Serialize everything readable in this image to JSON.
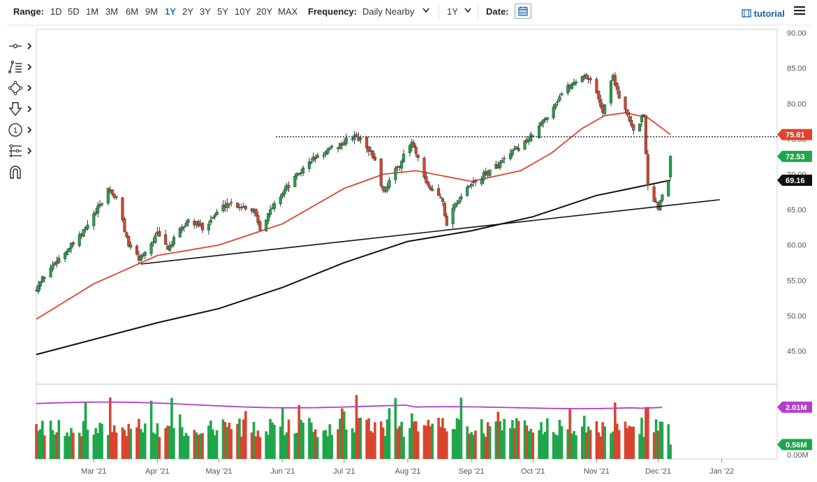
{
  "toolbar": {
    "range_label": "Range:",
    "ranges": [
      "1D",
      "5D",
      "1M",
      "3M",
      "6M",
      "9M",
      "1Y",
      "2Y",
      "3Y",
      "5Y",
      "10Y",
      "20Y",
      "MAX"
    ],
    "active_range": "1Y",
    "frequency_label": "Frequency:",
    "frequency_value": "Daily Nearby",
    "period_value": "1Y",
    "date_label": "Date:",
    "tutorial_label": "tutorial"
  },
  "tools": [
    "crosshair-icon",
    "trendline-icon",
    "shape-icon",
    "arrow-down-icon",
    "annotation-number-icon",
    "fibonacci-icon",
    "magnet-icon"
  ],
  "colors": {
    "up": "#1fa64a",
    "down": "#d9442e",
    "ma50": "#e0442a",
    "ma200": "#111111",
    "volume_avg": "#b23fcc",
    "accent": "#1a73c8"
  },
  "chart_data": {
    "type": "candlestick",
    "y_ticks": [
      "90.00",
      "85.00",
      "80.00",
      "75.00",
      "70.00",
      "65.00",
      "60.00",
      "55.00",
      "50.00",
      "45.00"
    ],
    "ylim": [
      40.5,
      90.5
    ],
    "x_ticks": [
      {
        "label": "Mar '21",
        "date": "2021-03-01"
      },
      {
        "label": "Apr '21",
        "date": "2021-04-01"
      },
      {
        "label": "May '21",
        "date": "2021-05-01"
      },
      {
        "label": "Jun '21",
        "date": "2021-06-01"
      },
      {
        "label": "Jul '21",
        "date": "2021-07-01"
      },
      {
        "label": "Aug '21",
        "date": "2021-08-01"
      },
      {
        "label": "Sep '21",
        "date": "2021-09-01"
      },
      {
        "label": "Oct '21",
        "date": "2021-10-01"
      },
      {
        "label": "Nov '21",
        "date": "2021-11-01"
      },
      {
        "label": "Dec '21",
        "date": "2021-12-01"
      },
      {
        "label": "Jan '22",
        "date": "2022-01-01"
      }
    ],
    "x_range": [
      "2021-02-01",
      "2022-01-28"
    ],
    "price_anchors": [
      {
        "date": "2021-02-01",
        "close": 54.0
      },
      {
        "date": "2021-02-10",
        "close": 57.5
      },
      {
        "date": "2021-02-22",
        "close": 61.0
      },
      {
        "date": "2021-03-05",
        "close": 66.0
      },
      {
        "date": "2021-03-08",
        "close": 68.0
      },
      {
        "date": "2021-03-12",
        "close": 66.5
      },
      {
        "date": "2021-03-18",
        "close": 60.0
      },
      {
        "date": "2021-03-23",
        "close": 58.0
      },
      {
        "date": "2021-04-01",
        "close": 61.5
      },
      {
        "date": "2021-04-06",
        "close": 59.5
      },
      {
        "date": "2021-04-16",
        "close": 63.5
      },
      {
        "date": "2021-04-23",
        "close": 62.5
      },
      {
        "date": "2021-05-05",
        "close": 66.0
      },
      {
        "date": "2021-05-12",
        "close": 65.5
      },
      {
        "date": "2021-05-18",
        "close": 65.0
      },
      {
        "date": "2021-05-21",
        "close": 62.5
      },
      {
        "date": "2021-06-01",
        "close": 67.5
      },
      {
        "date": "2021-06-15",
        "close": 72.0
      },
      {
        "date": "2021-06-28",
        "close": 74.0
      },
      {
        "date": "2021-07-06",
        "close": 75.5
      },
      {
        "date": "2021-07-12",
        "close": 74.0
      },
      {
        "date": "2021-07-16",
        "close": 72.0
      },
      {
        "date": "2021-07-20",
        "close": 67.5
      },
      {
        "date": "2021-07-28",
        "close": 71.5
      },
      {
        "date": "2021-08-03",
        "close": 74.5
      },
      {
        "date": "2021-08-10",
        "close": 68.5
      },
      {
        "date": "2021-08-18",
        "close": 66.5
      },
      {
        "date": "2021-08-20",
        "close": 62.5
      },
      {
        "date": "2021-08-23",
        "close": 65.5
      },
      {
        "date": "2021-09-01",
        "close": 68.5
      },
      {
        "date": "2021-09-15",
        "close": 71.5
      },
      {
        "date": "2021-09-23",
        "close": 73.5
      },
      {
        "date": "2021-10-01",
        "close": 75.5
      },
      {
        "date": "2021-10-06",
        "close": 77.5
      },
      {
        "date": "2021-10-15",
        "close": 81.5
      },
      {
        "date": "2021-10-25",
        "close": 84.0
      },
      {
        "date": "2021-10-29",
        "close": 83.5
      },
      {
        "date": "2021-11-04",
        "close": 79.0
      },
      {
        "date": "2021-11-09",
        "close": 84.0
      },
      {
        "date": "2021-11-12",
        "close": 81.0
      },
      {
        "date": "2021-11-19",
        "close": 76.0
      },
      {
        "date": "2021-11-24",
        "close": 78.5
      },
      {
        "date": "2021-11-26",
        "close": 68.0
      },
      {
        "date": "2021-11-30",
        "close": 66.0
      },
      {
        "date": "2021-12-01",
        "close": 65.5
      },
      {
        "date": "2021-12-06",
        "close": 69.5
      },
      {
        "date": "2021-12-07",
        "close": 72.53
      }
    ],
    "last_date": "2021-12-07",
    "ma50": [
      {
        "date": "2021-02-01",
        "value": 49.5
      },
      {
        "date": "2021-03-01",
        "value": 54.5
      },
      {
        "date": "2021-04-01",
        "value": 58.5
      },
      {
        "date": "2021-05-01",
        "value": 60.0
      },
      {
        "date": "2021-06-01",
        "value": 63.0
      },
      {
        "date": "2021-07-01",
        "value": 68.0
      },
      {
        "date": "2021-07-20",
        "value": 70.0
      },
      {
        "date": "2021-08-05",
        "value": 70.5
      },
      {
        "date": "2021-09-01",
        "value": 69.0
      },
      {
        "date": "2021-09-25",
        "value": 70.5
      },
      {
        "date": "2021-10-10",
        "value": 73.0
      },
      {
        "date": "2021-10-25",
        "value": 76.5
      },
      {
        "date": "2021-11-05",
        "value": 78.3
      },
      {
        "date": "2021-11-15",
        "value": 78.7
      },
      {
        "date": "2021-11-26",
        "value": 78.0
      },
      {
        "date": "2021-12-07",
        "value": 75.61
      }
    ],
    "ma200": [
      {
        "date": "2021-02-01",
        "value": 44.5
      },
      {
        "date": "2021-04-01",
        "value": 49.0
      },
      {
        "date": "2021-05-01",
        "value": 51.0
      },
      {
        "date": "2021-06-01",
        "value": 54.0
      },
      {
        "date": "2021-07-01",
        "value": 57.5
      },
      {
        "date": "2021-08-01",
        "value": 60.5
      },
      {
        "date": "2021-09-01",
        "value": 62.0
      },
      {
        "date": "2021-10-01",
        "value": 64.0
      },
      {
        "date": "2021-11-01",
        "value": 67.0
      },
      {
        "date": "2021-12-07",
        "value": 69.16
      }
    ],
    "support_trendline": [
      {
        "date": "2021-03-24",
        "value": 57.3
      },
      {
        "date": "2021-12-31",
        "value": 66.4
      }
    ],
    "resistance_level": 75.3,
    "price_tags": [
      {
        "label": "75.61",
        "value": 75.61,
        "color": "#e0442a"
      },
      {
        "label": "72.53",
        "value": 72.53,
        "color": "#1fa64a"
      },
      {
        "label": "69.16",
        "value": 69.16,
        "color": "#111111"
      }
    ],
    "volume": {
      "y_ticks": [
        "0.00M"
      ],
      "ylim": [
        0,
        2.9
      ],
      "average": 2.01,
      "last": 0.56,
      "tags": [
        {
          "label": "2.01M",
          "value": 2.01,
          "color": "#b23fcc"
        },
        {
          "label": "0.56M",
          "value": 0.56,
          "color": "#1fa64a"
        }
      ]
    }
  }
}
